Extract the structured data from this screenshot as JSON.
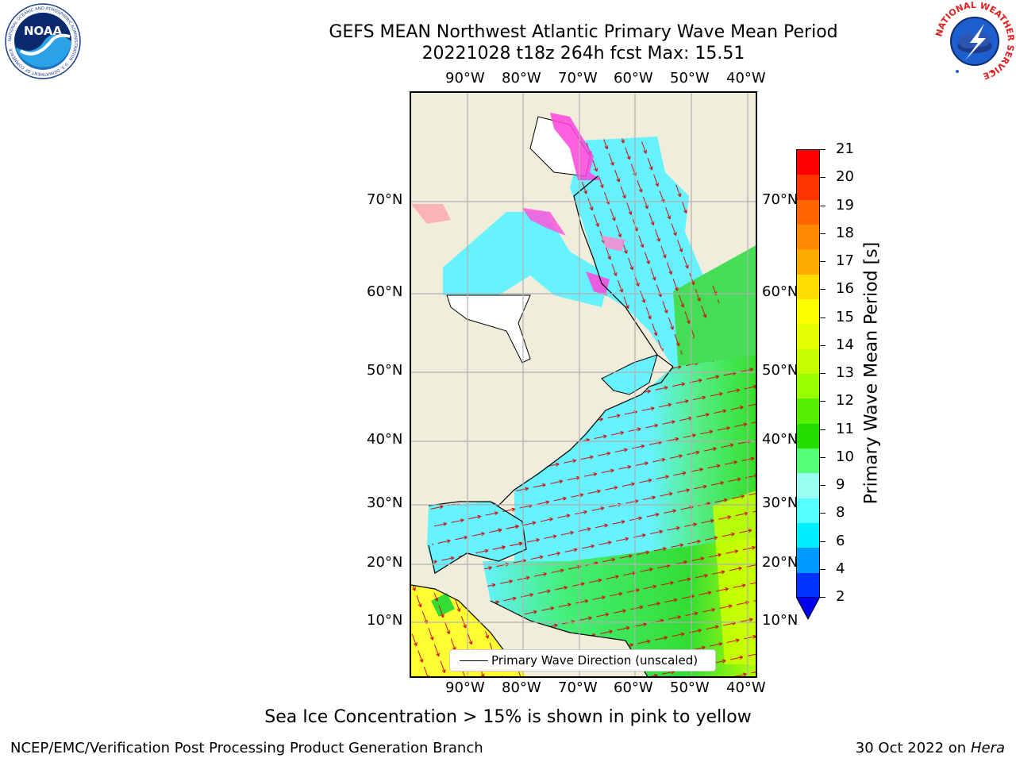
{
  "title": {
    "line1": "GEFS MEAN Northwest Atlantic Primary Wave Mean Period",
    "line2": "20221028 t18z 264h fcst   Max: 15.51"
  },
  "logos": {
    "noaa": {
      "text": "NOAA",
      "icon": "noaa-logo-icon",
      "ring_text": "NATIONAL OCEANIC AND ATMOSPHERIC ADMINISTRATION · U.S. DEPARTMENT OF COMMERCE"
    },
    "nws": {
      "icon": "nws-logo-icon",
      "ring_text": "NATIONAL WEATHER SERVICE"
    }
  },
  "map": {
    "lon_labels": [
      "90°W",
      "80°W",
      "70°W",
      "60°W",
      "50°W",
      "40°W"
    ],
    "lat_labels": [
      "70°N",
      "60°N",
      "50°N",
      "40°N",
      "30°N",
      "20°N",
      "10°N"
    ],
    "legend_label": "Primary Wave Direction (unscaled)",
    "colors": {
      "land": "#f0eedb",
      "grid": "#b0b0b0",
      "arrows": "#d01010",
      "coast": "#000000"
    }
  },
  "colorbar": {
    "label": "Primary Wave Mean Period [s]",
    "ticks": [
      "21",
      "20",
      "19",
      "18",
      "17",
      "16",
      "15",
      "14",
      "13",
      "12",
      "11",
      "10",
      "9",
      "8",
      "6",
      "4",
      "2"
    ],
    "colors": [
      "#ff0000",
      "#ff3300",
      "#ff6600",
      "#ff8800",
      "#ffaa00",
      "#ffdd00",
      "#ffff00",
      "#e5ff00",
      "#c8ff00",
      "#99ff00",
      "#55ee00",
      "#22dd00",
      "#55ff77",
      "#99ffee",
      "#55ffff",
      "#00eeff",
      "#0099ff",
      "#0033ff"
    ],
    "under_color": "#0000ee"
  },
  "footer": {
    "note": "Sea Ice Concentration > 15% is shown in pink to yellow",
    "left": "NCEP/EMC/Verification Post Processing Product Generation Branch",
    "date": "30 Oct 2022 on ",
    "machine": "Hera"
  }
}
